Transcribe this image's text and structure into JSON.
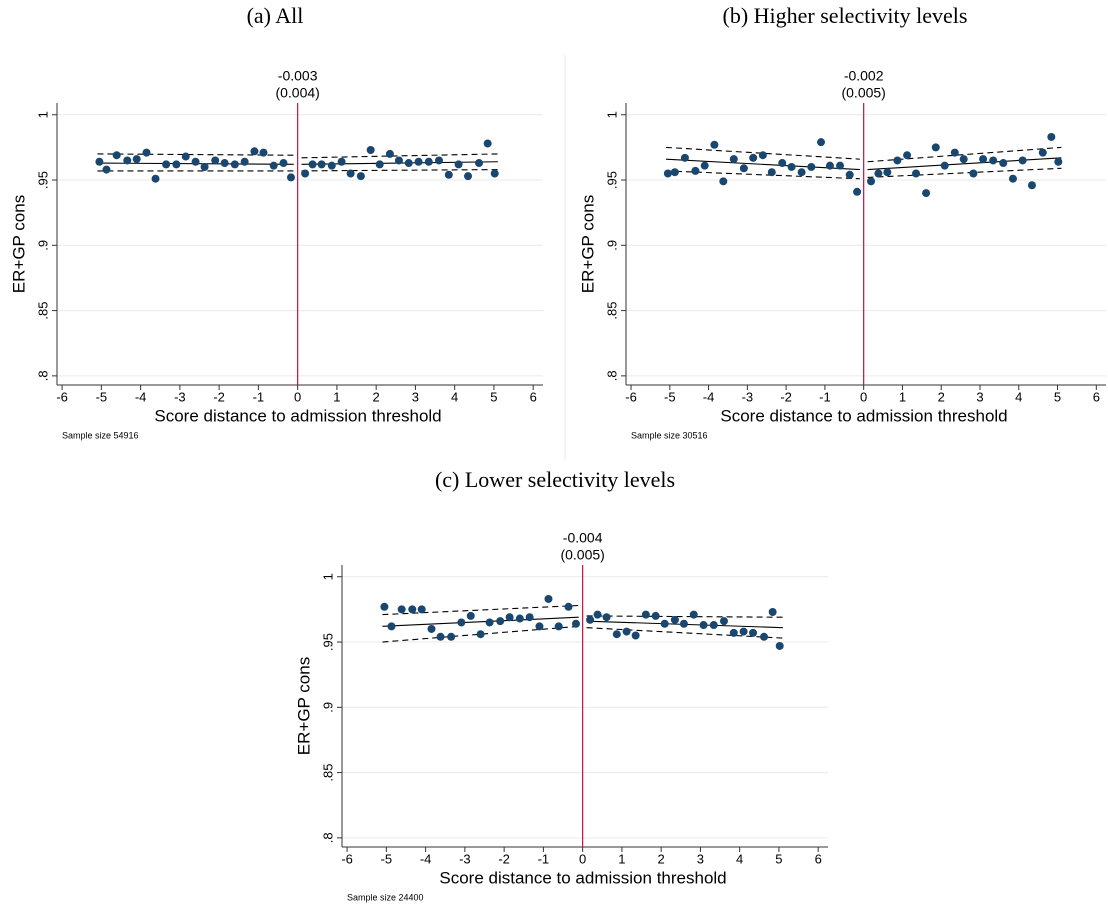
{
  "chart_data": [
    {
      "type": "scatter",
      "title": "(a) All",
      "annotation": [
        "-0.003",
        "(0.004)"
      ],
      "x_label": "Score distance to admission threshold",
      "y_label": "ER+GP cons",
      "note": "Sample size 54916",
      "xlim": [
        -6.13,
        6.25
      ],
      "ylim": [
        0.793,
        1.009
      ],
      "xticks": [
        -6,
        -5,
        -4,
        -3,
        -2,
        -1,
        0,
        1,
        2,
        3,
        4,
        5,
        6
      ],
      "yticks": [
        {
          "value": 0.8,
          "label": ".8"
        },
        {
          "value": 0.85,
          "label": ".85"
        },
        {
          "value": 0.9,
          "label": ".9"
        },
        {
          "value": 0.95,
          "label": ".95"
        },
        1
      ],
      "grid": true,
      "cutoff": 0,
      "cutoff_color": "#c8103e",
      "point_color": "#1a476f",
      "fit_color": "#000000",
      "points": {
        "x": [
          -5.05,
          -4.87,
          -4.61,
          -4.34,
          -4.1,
          -3.85,
          -3.62,
          -3.35,
          -3.09,
          -2.85,
          -2.6,
          -2.37,
          -2.1,
          -1.86,
          -1.6,
          -1.35,
          -1.1,
          -0.87,
          -0.61,
          -0.36,
          -0.17,
          0.19,
          0.38,
          0.61,
          0.87,
          1.12,
          1.35,
          1.61,
          1.86,
          2.09,
          2.35,
          2.58,
          2.83,
          3.08,
          3.34,
          3.6,
          3.85,
          4.1,
          4.34,
          4.62,
          4.84,
          5.02
        ],
        "y": [
          0.964,
          0.958,
          0.969,
          0.965,
          0.966,
          0.971,
          0.951,
          0.962,
          0.962,
          0.968,
          0.964,
          0.96,
          0.965,
          0.963,
          0.962,
          0.964,
          0.972,
          0.971,
          0.961,
          0.963,
          0.952,
          0.955,
          0.962,
          0.962,
          0.961,
          0.964,
          0.955,
          0.953,
          0.973,
          0.962,
          0.97,
          0.965,
          0.963,
          0.964,
          0.964,
          0.965,
          0.954,
          0.962,
          0.953,
          0.963,
          0.978,
          0.955
        ]
      },
      "fits": [
        {
          "x": [
            -5.1,
            -0.1
          ],
          "y": [
            0.963,
            0.962
          ],
          "lower": [
            0.957,
            0.957
          ],
          "upper": [
            0.97,
            0.969
          ]
        },
        {
          "x": [
            0.1,
            5.1
          ],
          "y": [
            0.962,
            0.964
          ],
          "lower": [
            0.957,
            0.958
          ],
          "upper": [
            0.967,
            0.97
          ]
        }
      ]
    },
    {
      "type": "scatter",
      "title": "(b) Higher selectivity levels",
      "annotation": [
        "-0.002",
        "(0.005)"
      ],
      "x_label": "Score distance to admission threshold",
      "y_label": "ER+GP cons",
      "note": "Sample size 30516",
      "xlim": [
        -6.13,
        6.25
      ],
      "ylim": [
        0.793,
        1.009
      ],
      "xticks": [
        -6,
        -5,
        -4,
        -3,
        -2,
        -1,
        0,
        1,
        2,
        3,
        4,
        5,
        6
      ],
      "yticks": [
        {
          "value": 0.8,
          "label": ".8"
        },
        {
          "value": 0.85,
          "label": ".85"
        },
        {
          "value": 0.9,
          "label": ".9"
        },
        {
          "value": 0.95,
          "label": ".95"
        },
        1
      ],
      "grid": true,
      "cutoff": 0,
      "cutoff_color": "#c8103e",
      "point_color": "#1a476f",
      "fit_color": "#000000",
      "points": {
        "x": [
          -5.05,
          -4.87,
          -4.61,
          -4.34,
          -4.1,
          -3.85,
          -3.62,
          -3.35,
          -3.09,
          -2.85,
          -2.6,
          -2.37,
          -2.1,
          -1.86,
          -1.6,
          -1.35,
          -1.1,
          -0.87,
          -0.61,
          -0.36,
          -0.17,
          0.19,
          0.38,
          0.61,
          0.87,
          1.12,
          1.35,
          1.61,
          1.86,
          2.09,
          2.35,
          2.58,
          2.83,
          3.08,
          3.34,
          3.6,
          3.85,
          4.1,
          4.34,
          4.62,
          4.84,
          5.02
        ],
        "y": [
          0.955,
          0.956,
          0.967,
          0.957,
          0.961,
          0.977,
          0.949,
          0.966,
          0.959,
          0.967,
          0.969,
          0.956,
          0.963,
          0.96,
          0.956,
          0.96,
          0.979,
          0.961,
          0.961,
          0.954,
          0.941,
          0.949,
          0.955,
          0.956,
          0.965,
          0.969,
          0.955,
          0.94,
          0.975,
          0.961,
          0.971,
          0.966,
          0.955,
          0.966,
          0.965,
          0.963,
          0.951,
          0.965,
          0.946,
          0.971,
          0.983,
          0.964
        ]
      },
      "fits": [
        {
          "x": [
            -5.1,
            -0.1
          ],
          "y": [
            0.966,
            0.958
          ],
          "lower": [
            0.957,
            0.951
          ],
          "upper": [
            0.975,
            0.966
          ]
        },
        {
          "x": [
            0.1,
            5.1
          ],
          "y": [
            0.958,
            0.967
          ],
          "lower": [
            0.952,
            0.959
          ],
          "upper": [
            0.964,
            0.975
          ]
        }
      ]
    },
    {
      "type": "scatter",
      "title": "(c) Lower selectivity levels",
      "annotation": [
        "-0.004",
        "(0.005)"
      ],
      "x_label": "Score distance to admission threshold",
      "y_label": "ER+GP cons",
      "note": "Sample size 24400",
      "xlim": [
        -6.13,
        6.25
      ],
      "ylim": [
        0.793,
        1.009
      ],
      "xticks": [
        -6,
        -5,
        -4,
        -3,
        -2,
        -1,
        0,
        1,
        2,
        3,
        4,
        5,
        6
      ],
      "yticks": [
        {
          "value": 0.8,
          "label": ".8"
        },
        {
          "value": 0.85,
          "label": ".85"
        },
        {
          "value": 0.9,
          "label": ".9"
        },
        {
          "value": 0.95,
          "label": ".95"
        },
        1
      ],
      "grid": true,
      "cutoff": 0,
      "cutoff_color": "#c8103e",
      "point_color": "#1a476f",
      "fit_color": "#000000",
      "points": {
        "x": [
          -5.05,
          -4.87,
          -4.61,
          -4.34,
          -4.1,
          -3.85,
          -3.62,
          -3.35,
          -3.09,
          -2.85,
          -2.6,
          -2.37,
          -2.1,
          -1.86,
          -1.6,
          -1.35,
          -1.1,
          -0.87,
          -0.61,
          -0.36,
          -0.17,
          0.19,
          0.38,
          0.61,
          0.87,
          1.12,
          1.35,
          1.61,
          1.86,
          2.09,
          2.35,
          2.58,
          2.83,
          3.08,
          3.34,
          3.6,
          3.85,
          4.1,
          4.34,
          4.62,
          4.84,
          5.02
        ],
        "y": [
          0.977,
          0.962,
          0.975,
          0.975,
          0.975,
          0.96,
          0.954,
          0.954,
          0.965,
          0.97,
          0.956,
          0.965,
          0.966,
          0.969,
          0.968,
          0.969,
          0.962,
          0.983,
          0.962,
          0.977,
          0.964,
          0.967,
          0.971,
          0.969,
          0.956,
          0.958,
          0.955,
          0.971,
          0.97,
          0.964,
          0.967,
          0.964,
          0.971,
          0.963,
          0.963,
          0.966,
          0.957,
          0.958,
          0.957,
          0.954,
          0.973,
          0.947
        ]
      },
      "fits": [
        {
          "x": [
            -5.1,
            -0.1
          ],
          "y": [
            0.962,
            0.969
          ],
          "lower": [
            0.95,
            0.962
          ],
          "upper": [
            0.971,
            0.978
          ]
        },
        {
          "x": [
            0.1,
            5.1
          ],
          "y": [
            0.966,
            0.961
          ],
          "lower": [
            0.961,
            0.953
          ],
          "upper": [
            0.97,
            0.969
          ]
        }
      ]
    }
  ]
}
